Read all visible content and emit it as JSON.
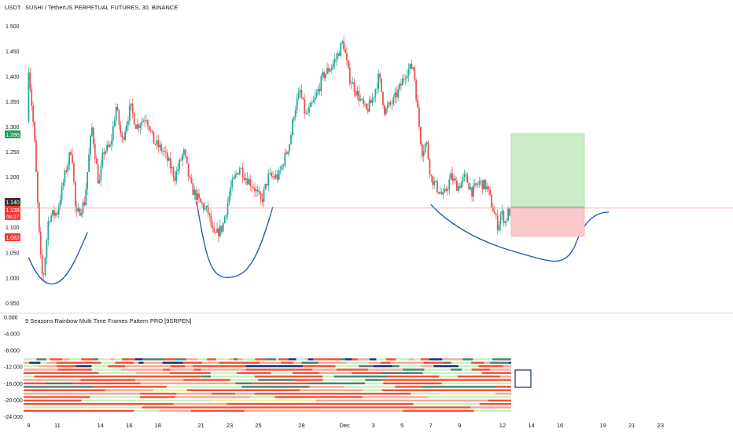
{
  "header": {
    "currency": "USDT",
    "symbol_line": "SUSHI / TetherUS PERPETUAL FUTURES, 30, BINANCE"
  },
  "indicator": {
    "title": "9 Seasons Rainbow Multi Time Frames Pattern PRO [9SRPEN]",
    "yticks": [
      "0.000",
      "-4.000",
      "-8.000",
      "-12.000",
      "-16.000",
      "-20.000",
      "-24.000"
    ],
    "yticks_values": [
      0,
      -4,
      -8,
      -12,
      -16,
      -20,
      -24
    ],
    "ylim": [
      -24.6,
      0.3
    ],
    "rows": 16,
    "colors": {
      "red": "#f0502f",
      "salmon": "#f7a88f",
      "lightgreen": "#c8f0c0",
      "darkgreen": "#4a7f6a",
      "navy": "#1a2a6e",
      "yellow": "#f6eea0"
    }
  },
  "chart_data": {
    "type": "candlestick",
    "title": "SUSHI / TetherUS PERPETUAL FUTURES, 30, BINANCE",
    "ylabel": "USDT",
    "ylim": [
      0.935,
      1.52
    ],
    "yticks": [
      "1.500",
      "1.450",
      "1.400",
      "1.350",
      "1.300",
      "1.250",
      "1.200",
      "1.150",
      "1.100",
      "1.050",
      "1.000",
      "0.950"
    ],
    "yticks_values": [
      1.5,
      1.45,
      1.4,
      1.35,
      1.3,
      1.25,
      1.2,
      1.15,
      1.1,
      1.05,
      1.0,
      0.95
    ],
    "xticks": [
      "9",
      "11",
      "14",
      "16",
      "18",
      "21",
      "23",
      "25",
      "28",
      "Dec",
      "3",
      "5",
      "7",
      "9",
      "12",
      "14",
      "16",
      "19",
      "21",
      "23"
    ],
    "x_positions_days": [
      0,
      2,
      5,
      7,
      9,
      12,
      14,
      16,
      19,
      22,
      24,
      26,
      28,
      30,
      33,
      35,
      37,
      40,
      42,
      44
    ],
    "xlim_days": [
      -0.35,
      46.2
    ],
    "price_path": [
      [
        0,
        1.31
      ],
      [
        0.1,
        1.42
      ],
      [
        0.5,
        1.28
      ],
      [
        0.9,
        1.05
      ],
      [
        1.1,
        0.99
      ],
      [
        1.5,
        1.12
      ],
      [
        2.1,
        1.13
      ],
      [
        2.6,
        1.2
      ],
      [
        3.1,
        1.26
      ],
      [
        3.4,
        1.12
      ],
      [
        4.0,
        1.15
      ],
      [
        4.5,
        1.3
      ],
      [
        5.0,
        1.18
      ],
      [
        5.3,
        1.25
      ],
      [
        5.8,
        1.26
      ],
      [
        6.2,
        1.34
      ],
      [
        6.6,
        1.27
      ],
      [
        7.2,
        1.34
      ],
      [
        7.6,
        1.3
      ],
      [
        8.3,
        1.32
      ],
      [
        8.8,
        1.27
      ],
      [
        9.5,
        1.25
      ],
      [
        10.3,
        1.2
      ],
      [
        10.9,
        1.25
      ],
      [
        11.4,
        1.18
      ],
      [
        12.0,
        1.15
      ],
      [
        12.6,
        1.13
      ],
      [
        13.0,
        1.08
      ],
      [
        13.6,
        1.1
      ],
      [
        14.2,
        1.18
      ],
      [
        14.8,
        1.22
      ],
      [
        15.2,
        1.2
      ],
      [
        15.8,
        1.18
      ],
      [
        16.3,
        1.15
      ],
      [
        16.8,
        1.2
      ],
      [
        17.5,
        1.2
      ],
      [
        18.3,
        1.27
      ],
      [
        18.6,
        1.33
      ],
      [
        19.0,
        1.37
      ],
      [
        19.4,
        1.32
      ],
      [
        20.0,
        1.35
      ],
      [
        20.6,
        1.4
      ],
      [
        21.2,
        1.42
      ],
      [
        21.6,
        1.44
      ],
      [
        22.0,
        1.47
      ],
      [
        22.4,
        1.4
      ],
      [
        22.9,
        1.37
      ],
      [
        23.6,
        1.33
      ],
      [
        24.0,
        1.35
      ],
      [
        24.5,
        1.4
      ],
      [
        24.9,
        1.33
      ],
      [
        25.5,
        1.35
      ],
      [
        26.0,
        1.38
      ],
      [
        26.4,
        1.41
      ],
      [
        26.9,
        1.42
      ],
      [
        27.1,
        1.36
      ],
      [
        27.3,
        1.3
      ],
      [
        27.5,
        1.25
      ],
      [
        27.8,
        1.27
      ],
      [
        28.1,
        1.2
      ],
      [
        28.5,
        1.18
      ],
      [
        29.0,
        1.16
      ],
      [
        29.5,
        1.2
      ],
      [
        30.0,
        1.18
      ],
      [
        30.5,
        1.2
      ],
      [
        31.0,
        1.17
      ],
      [
        31.5,
        1.19
      ],
      [
        32.0,
        1.18
      ],
      [
        32.3,
        1.15
      ],
      [
        32.6,
        1.12
      ],
      [
        32.8,
        1.1
      ],
      [
        33.0,
        1.13
      ],
      [
        33.3,
        1.11
      ],
      [
        33.5,
        1.13
      ]
    ],
    "last_price": "1.138",
    "countdown": "08:27",
    "stop_price": "1.082",
    "target_price": "1.286",
    "entry_price": "1.140",
    "position": {
      "from_day": 33.6,
      "to_day": 38.7,
      "entry": 1.14,
      "target": 1.286,
      "stop": 1.082
    }
  }
}
